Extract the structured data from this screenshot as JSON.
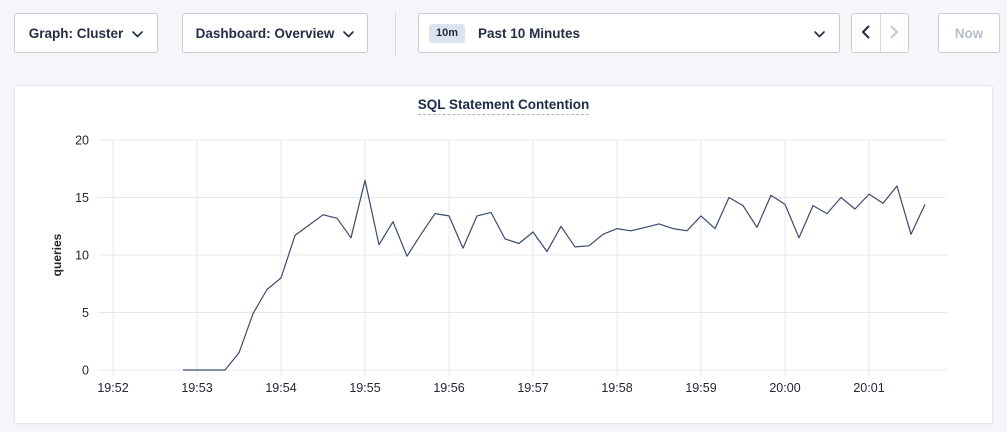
{
  "toolbar": {
    "graph_label": "Graph: Cluster",
    "dashboard_label": "Dashboard: Overview",
    "time_badge": "10m",
    "time_label": "Past 10 Minutes",
    "now_label": "Now"
  },
  "colors": {
    "line": "#3b4a6e",
    "grid": "#e7e8ec",
    "title": "#1f2a4a",
    "accent_navy": "#242d45"
  },
  "chart_data": {
    "type": "line",
    "title": "SQL Statement Contention",
    "xlabel": "",
    "ylabel": "queries",
    "ylim": [
      0,
      20
    ],
    "y_ticks": [
      0,
      5,
      10,
      15,
      20
    ],
    "x_ticks": [
      "19:52",
      "19:53",
      "19:54",
      "19:55",
      "19:56",
      "19:57",
      "19:58",
      "19:59",
      "20:00",
      "20:01"
    ],
    "grid": true,
    "legend": "none",
    "series": [
      {
        "name": "queries",
        "x": [
          "19:52:50",
          "19:53:00",
          "19:53:10",
          "19:53:20",
          "19:53:30",
          "19:53:40",
          "19:53:50",
          "19:54:00",
          "19:54:10",
          "19:54:20",
          "19:54:30",
          "19:54:40",
          "19:54:50",
          "19:55:00",
          "19:55:10",
          "19:55:20",
          "19:55:30",
          "19:55:40",
          "19:55:50",
          "19:56:00",
          "19:56:10",
          "19:56:20",
          "19:56:30",
          "19:56:40",
          "19:56:50",
          "19:57:00",
          "19:57:10",
          "19:57:20",
          "19:57:30",
          "19:57:40",
          "19:57:50",
          "19:58:00",
          "19:58:10",
          "19:58:20",
          "19:58:30",
          "19:58:40",
          "19:58:50",
          "19:59:00",
          "19:59:10",
          "19:59:20",
          "19:59:30",
          "19:59:40",
          "19:59:50",
          "20:00:00",
          "20:00:10",
          "20:00:20",
          "20:00:30",
          "20:00:40",
          "20:00:50",
          "20:01:00",
          "20:01:10",
          "20:01:20",
          "20:01:30",
          "20:01:40"
        ],
        "values": [
          0,
          0,
          0,
          0,
          1.5,
          4.9,
          7.0,
          8.0,
          11.7,
          12.6,
          13.5,
          13.2,
          11.5,
          16.5,
          10.9,
          12.9,
          9.9,
          11.8,
          13.6,
          13.4,
          10.6,
          13.4,
          13.7,
          11.4,
          11.0,
          12.0,
          10.3,
          12.5,
          10.7,
          10.8,
          11.8,
          12.3,
          12.1,
          12.4,
          12.7,
          12.3,
          12.1,
          13.4,
          12.3,
          15.0,
          14.3,
          12.4,
          15.2,
          14.4,
          11.5,
          14.3,
          13.6,
          15.0,
          14.0,
          15.3,
          14.5,
          16.0,
          11.8,
          14.4
        ]
      }
    ]
  }
}
